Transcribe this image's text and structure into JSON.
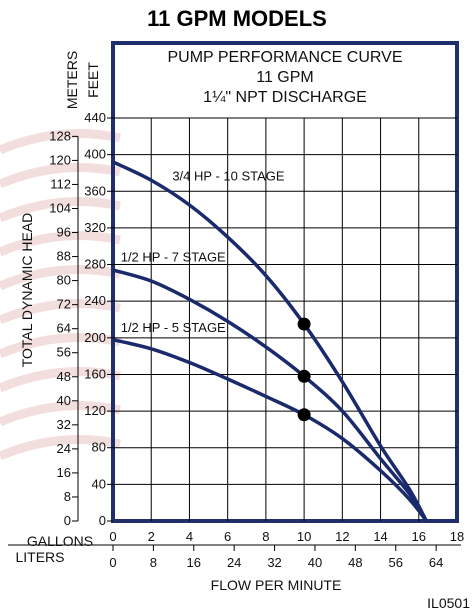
{
  "heading": "11 GPM MODELS",
  "colors": {
    "brand": "#1f2f6b",
    "curve": "#1a2a6c",
    "frame": "#1f2f6b",
    "grid": "#000000",
    "stripe": "#f3dede"
  },
  "chart_data": {
    "type": "line",
    "title_lines": [
      "PUMP PERFORMANCE CURVE",
      "11 GPM",
      "1¼\" NPT DISCHARGE"
    ],
    "xlabel": "FLOW PER MINUTE",
    "ylabel": "TOTAL DYNAMIC HEAD",
    "x_unit_primary": "GALLONS",
    "x_unit_secondary": "LITERS",
    "y_unit_primary": "FEET",
    "y_unit_secondary": "METERS",
    "xlim": [
      0,
      18
    ],
    "ylim": [
      0,
      440
    ],
    "x_ticks_gallons": [
      0,
      2,
      4,
      6,
      8,
      10,
      12,
      14,
      16,
      18
    ],
    "x_ticks_liters": [
      0,
      8,
      16,
      24,
      32,
      40,
      48,
      56,
      64
    ],
    "y_ticks_feet": [
      0,
      40,
      80,
      120,
      160,
      200,
      240,
      280,
      320,
      360,
      400,
      440
    ],
    "y_ticks_meters": [
      0,
      8,
      16,
      24,
      32,
      40,
      48,
      56,
      64,
      72,
      80,
      88,
      96,
      104,
      112,
      120,
      128
    ],
    "grid": true,
    "series": [
      {
        "name": "3/4 HP - 10 STAGE",
        "x": [
          0,
          2,
          4,
          6,
          8,
          10,
          12,
          14,
          15.5,
          16.4
        ],
        "y": [
          392,
          372,
          345,
          310,
          268,
          215,
          152,
          82,
          35,
          0
        ],
        "rated_point": [
          10,
          215
        ]
      },
      {
        "name": "1/2 HP - 7 STAGE",
        "x": [
          0,
          2,
          4,
          6,
          8,
          10,
          12,
          14,
          15.5,
          16.4
        ],
        "y": [
          274,
          262,
          242,
          218,
          190,
          158,
          120,
          68,
          30,
          0
        ],
        "rated_point": [
          10,
          158
        ]
      },
      {
        "name": "1/2 HP - 5 STAGE",
        "x": [
          0,
          2,
          4,
          6,
          8,
          10,
          12,
          14,
          15.5,
          16.4
        ],
        "y": [
          198,
          188,
          173,
          155,
          136,
          116,
          90,
          55,
          24,
          0
        ],
        "rated_point": [
          10,
          116
        ]
      }
    ]
  },
  "image_code": "IL0501"
}
